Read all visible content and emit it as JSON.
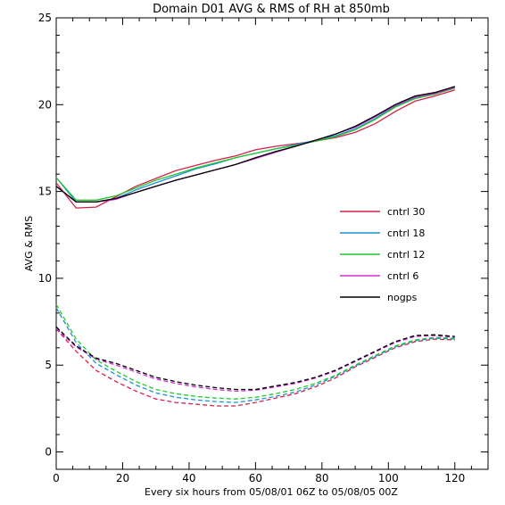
{
  "chart_data": {
    "type": "line",
    "title": "Domain D01 AVG & RMS of RH at 850mb",
    "xlabel": "Every six hours from 05/08/01 06Z to 05/08/05 00Z",
    "ylabel": "AVG & RMS",
    "xlim": [
      0,
      130
    ],
    "ylim": [
      -1,
      25
    ],
    "xticks": [
      0,
      20,
      40,
      60,
      80,
      100,
      120
    ],
    "yticks": [
      0,
      5,
      10,
      15,
      20,
      25
    ],
    "grid": false,
    "legend_position": "right-middle",
    "x": [
      0,
      6,
      12,
      18,
      24,
      30,
      36,
      42,
      48,
      54,
      60,
      66,
      72,
      78,
      84,
      90,
      96,
      102,
      108,
      114,
      120
    ],
    "series": [
      {
        "name": "cntrl 30",
        "color": "#d4204a",
        "rms": [
          15.5,
          14.05,
          14.1,
          14.7,
          15.3,
          15.75,
          16.2,
          16.5,
          16.8,
          17.05,
          17.4,
          17.6,
          17.75,
          17.9,
          18.1,
          18.4,
          18.9,
          19.6,
          20.2,
          20.5,
          20.85
        ],
        "avg": [
          7.1,
          5.8,
          4.7,
          4.05,
          3.5,
          3.05,
          2.85,
          2.75,
          2.65,
          2.65,
          2.85,
          3.1,
          3.35,
          3.75,
          4.25,
          4.9,
          5.45,
          6.0,
          6.35,
          6.5,
          6.45
        ]
      },
      {
        "name": "cntrl 18",
        "color": "#1f8fdc",
        "rms": [
          15.8,
          14.4,
          14.4,
          14.6,
          15.1,
          15.5,
          15.9,
          16.3,
          16.6,
          16.95,
          17.2,
          17.45,
          17.7,
          17.95,
          18.2,
          18.6,
          19.2,
          19.9,
          20.4,
          20.6,
          21.0
        ],
        "avg": [
          8.3,
          6.3,
          5.1,
          4.45,
          3.85,
          3.4,
          3.15,
          3.0,
          2.9,
          2.85,
          3.0,
          3.2,
          3.45,
          3.85,
          4.35,
          4.95,
          5.5,
          6.05,
          6.4,
          6.55,
          6.5
        ]
      },
      {
        "name": "cntrl 12",
        "color": "#22c92e",
        "rms": [
          15.8,
          14.5,
          14.5,
          14.75,
          15.2,
          15.65,
          16.0,
          16.35,
          16.65,
          16.95,
          17.2,
          17.45,
          17.65,
          17.9,
          18.15,
          18.55,
          19.15,
          19.85,
          20.35,
          20.6,
          20.95
        ],
        "avg": [
          8.5,
          6.5,
          5.3,
          4.65,
          4.05,
          3.6,
          3.35,
          3.2,
          3.1,
          3.05,
          3.15,
          3.35,
          3.6,
          3.95,
          4.4,
          5.0,
          5.55,
          6.1,
          6.45,
          6.6,
          6.55
        ]
      },
      {
        "name": "cntrl 6",
        "color": "#d62ad9",
        "rms": [
          15.3,
          14.4,
          14.4,
          14.55,
          14.95,
          15.3,
          15.65,
          15.95,
          16.25,
          16.55,
          16.9,
          17.25,
          17.6,
          17.95,
          18.3,
          18.7,
          19.3,
          19.95,
          20.45,
          20.65,
          21.0
        ],
        "avg": [
          7.1,
          6.05,
          5.35,
          5.0,
          4.6,
          4.2,
          3.95,
          3.75,
          3.6,
          3.5,
          3.55,
          3.75,
          3.95,
          4.25,
          4.65,
          5.2,
          5.75,
          6.3,
          6.65,
          6.7,
          6.6
        ]
      },
      {
        "name": "nogps",
        "color": "#000000",
        "rms": [
          15.3,
          14.4,
          14.4,
          14.6,
          14.95,
          15.3,
          15.65,
          15.95,
          16.25,
          16.55,
          16.95,
          17.3,
          17.6,
          17.95,
          18.3,
          18.75,
          19.35,
          20.0,
          20.5,
          20.7,
          21.05
        ],
        "avg": [
          7.2,
          6.1,
          5.4,
          5.1,
          4.7,
          4.3,
          4.05,
          3.85,
          3.7,
          3.6,
          3.6,
          3.8,
          4.0,
          4.3,
          4.7,
          5.25,
          5.8,
          6.35,
          6.7,
          6.75,
          6.65
        ]
      }
    ]
  }
}
